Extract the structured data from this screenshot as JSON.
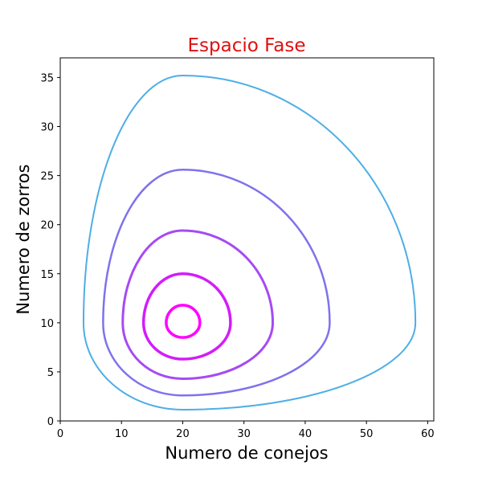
{
  "chart_data": {
    "type": "line",
    "title": "Espacio Fase",
    "title_color": "#e01010",
    "xlabel": "Numero de conejos",
    "ylabel": "Numero de zorros",
    "xlim": [
      0,
      61
    ],
    "ylim": [
      0,
      37
    ],
    "xticks": [
      0,
      10,
      20,
      30,
      40,
      50,
      60
    ],
    "yticks": [
      0,
      5,
      10,
      15,
      20,
      25,
      30,
      35
    ],
    "grid": false,
    "legend": "none",
    "center": [
      20,
      10
    ],
    "series": [
      {
        "color": "#ff00ff",
        "line_width": 3.5,
        "x": [
          17.3,
          20,
          22.8,
          20
        ],
        "y": [
          10,
          11.8,
          10,
          8.5
        ]
      },
      {
        "color": "#d21dfa",
        "line_width": 3.5,
        "x": [
          13.6,
          20,
          27.8,
          20
        ],
        "y": [
          10,
          15,
          10,
          6.3
        ]
      },
      {
        "color": "#a64af2",
        "line_width": 3,
        "x": [
          10.2,
          20,
          34.7,
          20
        ],
        "y": [
          10,
          19.4,
          10,
          4.3
        ]
      },
      {
        "color": "#7f72ec",
        "line_width": 2.5,
        "x": [
          7.0,
          20,
          44.0,
          20
        ],
        "y": [
          10,
          25.6,
          10,
          2.6
        ]
      },
      {
        "color": "#4eaee5",
        "line_width": 2,
        "x": [
          3.8,
          20,
          58.0,
          20
        ],
        "y": [
          10,
          35.2,
          10,
          1.15
        ]
      }
    ]
  }
}
